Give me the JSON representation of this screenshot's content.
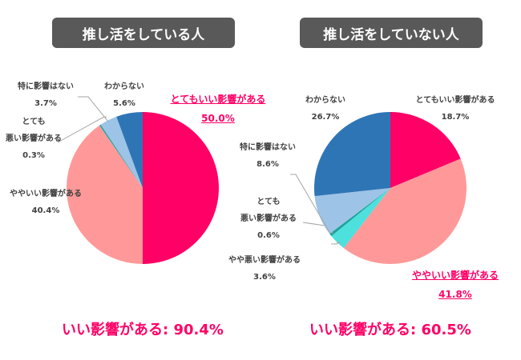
{
  "chart_data": [
    {
      "type": "pie",
      "title": "推し活をしている人",
      "labels": [
        "とてもいい影響がある",
        "ややいい影響がある",
        "とても悪い影響がある",
        "特に影響はない",
        "わからない"
      ],
      "label_lines": [
        [
          "とてもいい影響がある"
        ],
        [
          "ややいい影響がある"
        ],
        [
          "とても",
          "悪い影響がある"
        ],
        [
          "特に影響はない"
        ],
        [
          "わからない"
        ]
      ],
      "values": [
        50.0,
        40.4,
        0.3,
        3.7,
        5.6
      ],
      "value_labels": [
        "50.0%",
        "40.4%",
        "0.3%",
        "3.7%",
        "5.6%"
      ],
      "colors": [
        "#FF0066",
        "#FF9999",
        "#1BA39C",
        "#9DC3E6",
        "#2E75B6"
      ],
      "highlighted": "とてもいい影響がある",
      "total_label": "いい影響がある: 90.4%"
    },
    {
      "type": "pie",
      "title": "推し活をしていない人",
      "labels": [
        "とてもいい影響がある",
        "ややいい影響がある",
        "やや悪い影響がある",
        "とても悪い影響がある",
        "特に影響はない",
        "わからない"
      ],
      "label_lines": [
        [
          "とてもいい影響がある"
        ],
        [
          "ややいい影響がある"
        ],
        [
          "やや悪い影響がある"
        ],
        [
          "とても",
          "悪い影響がある"
        ],
        [
          "特に影響はない"
        ],
        [
          "わからない"
        ]
      ],
      "values": [
        18.7,
        41.8,
        3.6,
        0.6,
        8.6,
        26.7
      ],
      "value_labels": [
        "18.7%",
        "41.8%",
        "3.6%",
        "0.6%",
        "8.6%",
        "26.7%"
      ],
      "colors": [
        "#FF0066",
        "#FF9999",
        "#4DE0DC",
        "#1BA39C",
        "#9DC3E6",
        "#2E75B6"
      ],
      "highlighted": "ややいい影響がある",
      "total_label": "いい影響がある: 60.5%"
    }
  ]
}
